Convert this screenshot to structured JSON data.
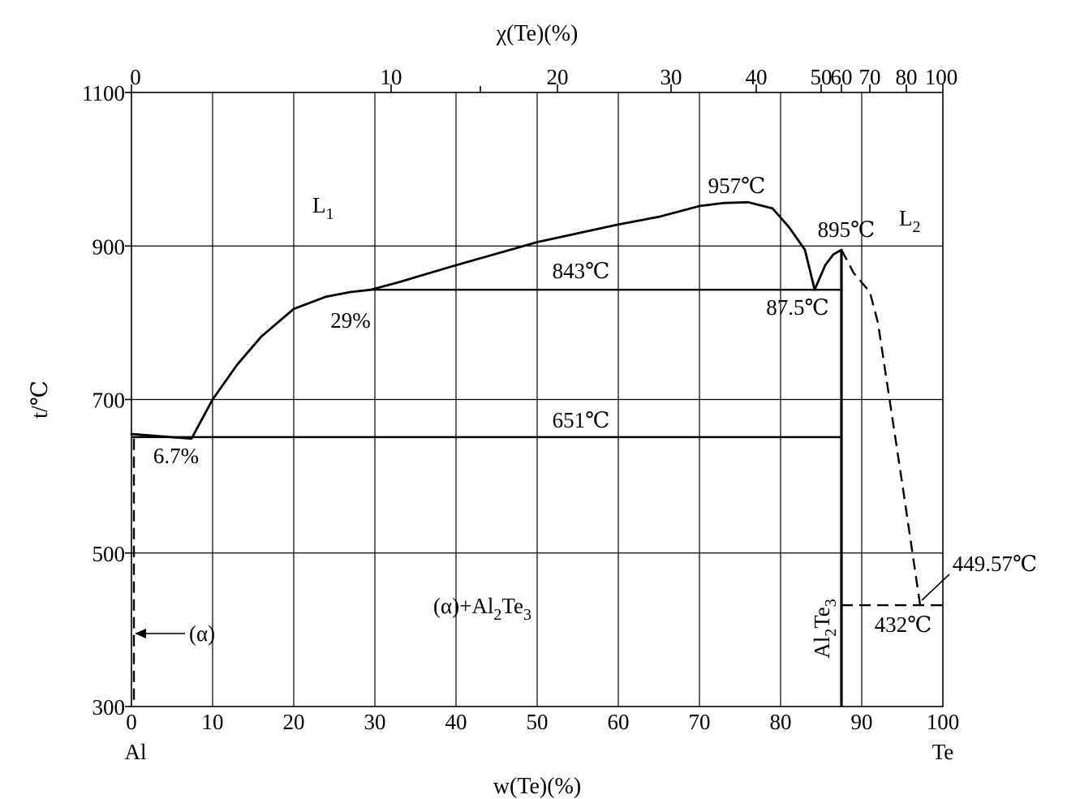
{
  "chart_data": {
    "type": "line",
    "title": "",
    "xlabel_top": {
      "main": "χ(Te)(%)"
    },
    "xlabel_bottom": {
      "main": "w(Te)(%)"
    },
    "ylabel": {
      "main": "t/℃"
    },
    "xlim": [
      0,
      100
    ],
    "ylim": [
      300,
      1100
    ],
    "grid": true,
    "bottom_ticks": [
      "0",
      "10",
      "20",
      "30",
      "40",
      "50",
      "60",
      "70",
      "80",
      "90",
      "100"
    ],
    "bottom_tick_values": [
      0,
      10,
      20,
      30,
      40,
      50,
      60,
      70,
      80,
      90,
      100
    ],
    "top_ticks": [
      "0",
      "10",
      "20",
      "30",
      "40",
      "50",
      "60",
      "70",
      "80",
      "100"
    ],
    "top_tick_positions_wt": [
      0,
      32,
      52.5,
      66.5,
      77,
      85,
      87.5,
      91,
      95.5,
      100
    ],
    "top_extra_tick_positions_wt": [
      43
    ],
    "y_ticks": [
      "300",
      "500",
      "700",
      "900",
      "1100"
    ],
    "y_tick_values": [
      300,
      500,
      700,
      900,
      1100
    ],
    "endpoint_left": "Al",
    "endpoint_right": "Te",
    "series": [
      {
        "style": "solid",
        "x": [
          0,
          7.4,
          10,
          13,
          16,
          20,
          24,
          27,
          29.5,
          33,
          40,
          50,
          60,
          65,
          70,
          73,
          76,
          79,
          81,
          83,
          84.2
        ],
        "y": [
          655,
          649,
          700,
          745,
          782,
          818,
          834,
          840,
          843,
          853,
          875,
          905,
          928,
          938,
          952,
          956,
          957,
          949,
          925,
          895,
          843
        ]
      },
      {
        "style": "solid",
        "x": [
          84.2,
          85.5,
          86.5,
          87.5
        ],
        "y": [
          843,
          875,
          889,
          895
        ]
      },
      {
        "style": "dashed",
        "x": [
          87.5,
          89,
          91,
          92,
          95,
          97.2
        ],
        "y": [
          895,
          865,
          840,
          800,
          590,
          432
        ]
      },
      {
        "style": "dashed",
        "x": [
          0.3,
          0.3
        ],
        "y": [
          649,
          300
        ]
      }
    ],
    "isotherms": [
      {
        "label": "843℃",
        "y": 843,
        "x_from": 29.5,
        "x_to": 87.5
      },
      {
        "label": "651℃",
        "y": 651,
        "x_from": 0,
        "x_to": 87.5
      },
      {
        "label": "432℃",
        "y": 432,
        "x_from": 87.5,
        "x_to": 100,
        "style": "dashed"
      }
    ],
    "compound_line": {
      "label": "Al2Te3",
      "x": 87.5,
      "y_from": 300,
      "y_to": 895
    },
    "annotations": [
      {
        "text": "L1",
        "main": "L",
        "sub": "1"
      },
      {
        "text": "L2",
        "main": "L",
        "sub": "2"
      },
      {
        "text": "957℃"
      },
      {
        "text": "895℃"
      },
      {
        "text": "843℃"
      },
      {
        "text": "87.5℃"
      },
      {
        "text": "29%"
      },
      {
        "text": "651℃"
      },
      {
        "text": "6.7%"
      },
      {
        "text": "(α)+Al2Te3",
        "parts": [
          "(α)+Al",
          "2",
          "Te",
          "3"
        ]
      },
      {
        "text": "(α)"
      },
      {
        "text": "449.57℃"
      },
      {
        "text": "432℃"
      }
    ]
  }
}
